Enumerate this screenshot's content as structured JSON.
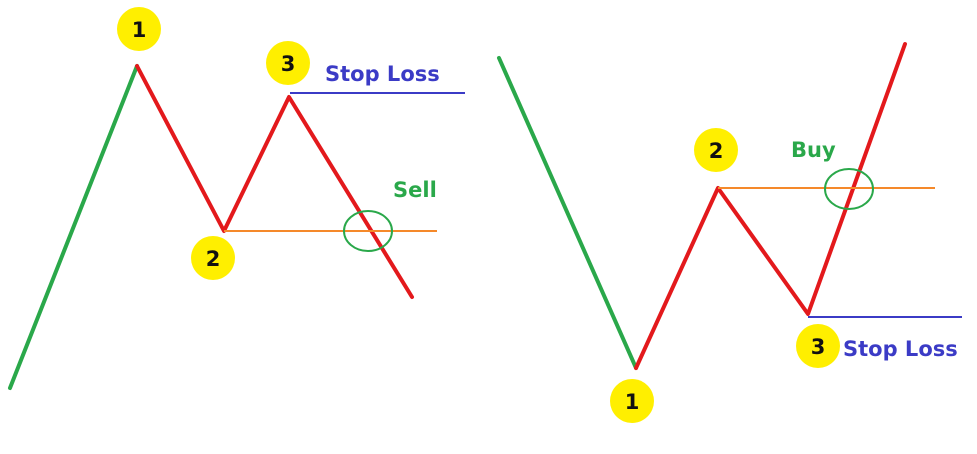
{
  "colors": {
    "uptrend": "#2aa84a",
    "pattern": "#e3191c",
    "neckline": "#f5892a",
    "stop_loss": "#3b3bc6",
    "signal": "#2aa84a",
    "badge": "#ffef00"
  },
  "left_pattern": {
    "badges": {
      "first": "1",
      "second": "2",
      "third": "3"
    },
    "stop_loss_label": "Stop Loss",
    "signal_label": "Sell"
  },
  "right_pattern": {
    "badges": {
      "first": "1",
      "second": "2",
      "third": "3"
    },
    "stop_loss_label": "Stop Loss",
    "signal_label": "Buy"
  }
}
